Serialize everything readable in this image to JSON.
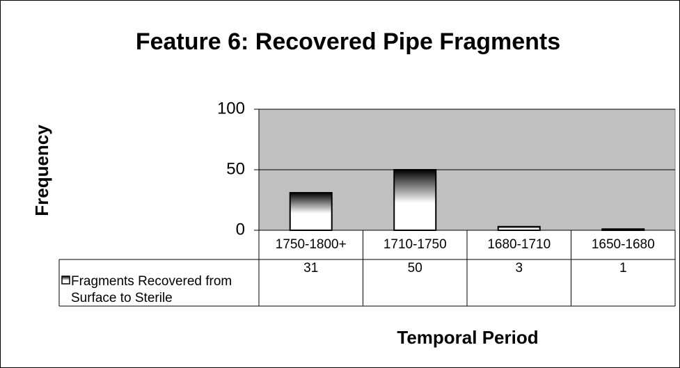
{
  "chart_data": {
    "type": "bar",
    "title": "Feature 6: Recovered Pipe Fragments",
    "ylabel": "Frequency",
    "xlabel": "Temporal Period",
    "categories": [
      "1750-1800+",
      "1710-1750",
      "1680-1710",
      "1650-1680"
    ],
    "series": [
      {
        "name": "Fragments Recovered from Surface to Sterile",
        "color": "#000000",
        "values": [
          31,
          50,
          3,
          1
        ]
      }
    ],
    "ylim": [
      0,
      100
    ],
    "yticks": [
      0,
      50,
      100
    ],
    "grid": true,
    "plot_background": "#c0c0c0",
    "data_table": true
  }
}
